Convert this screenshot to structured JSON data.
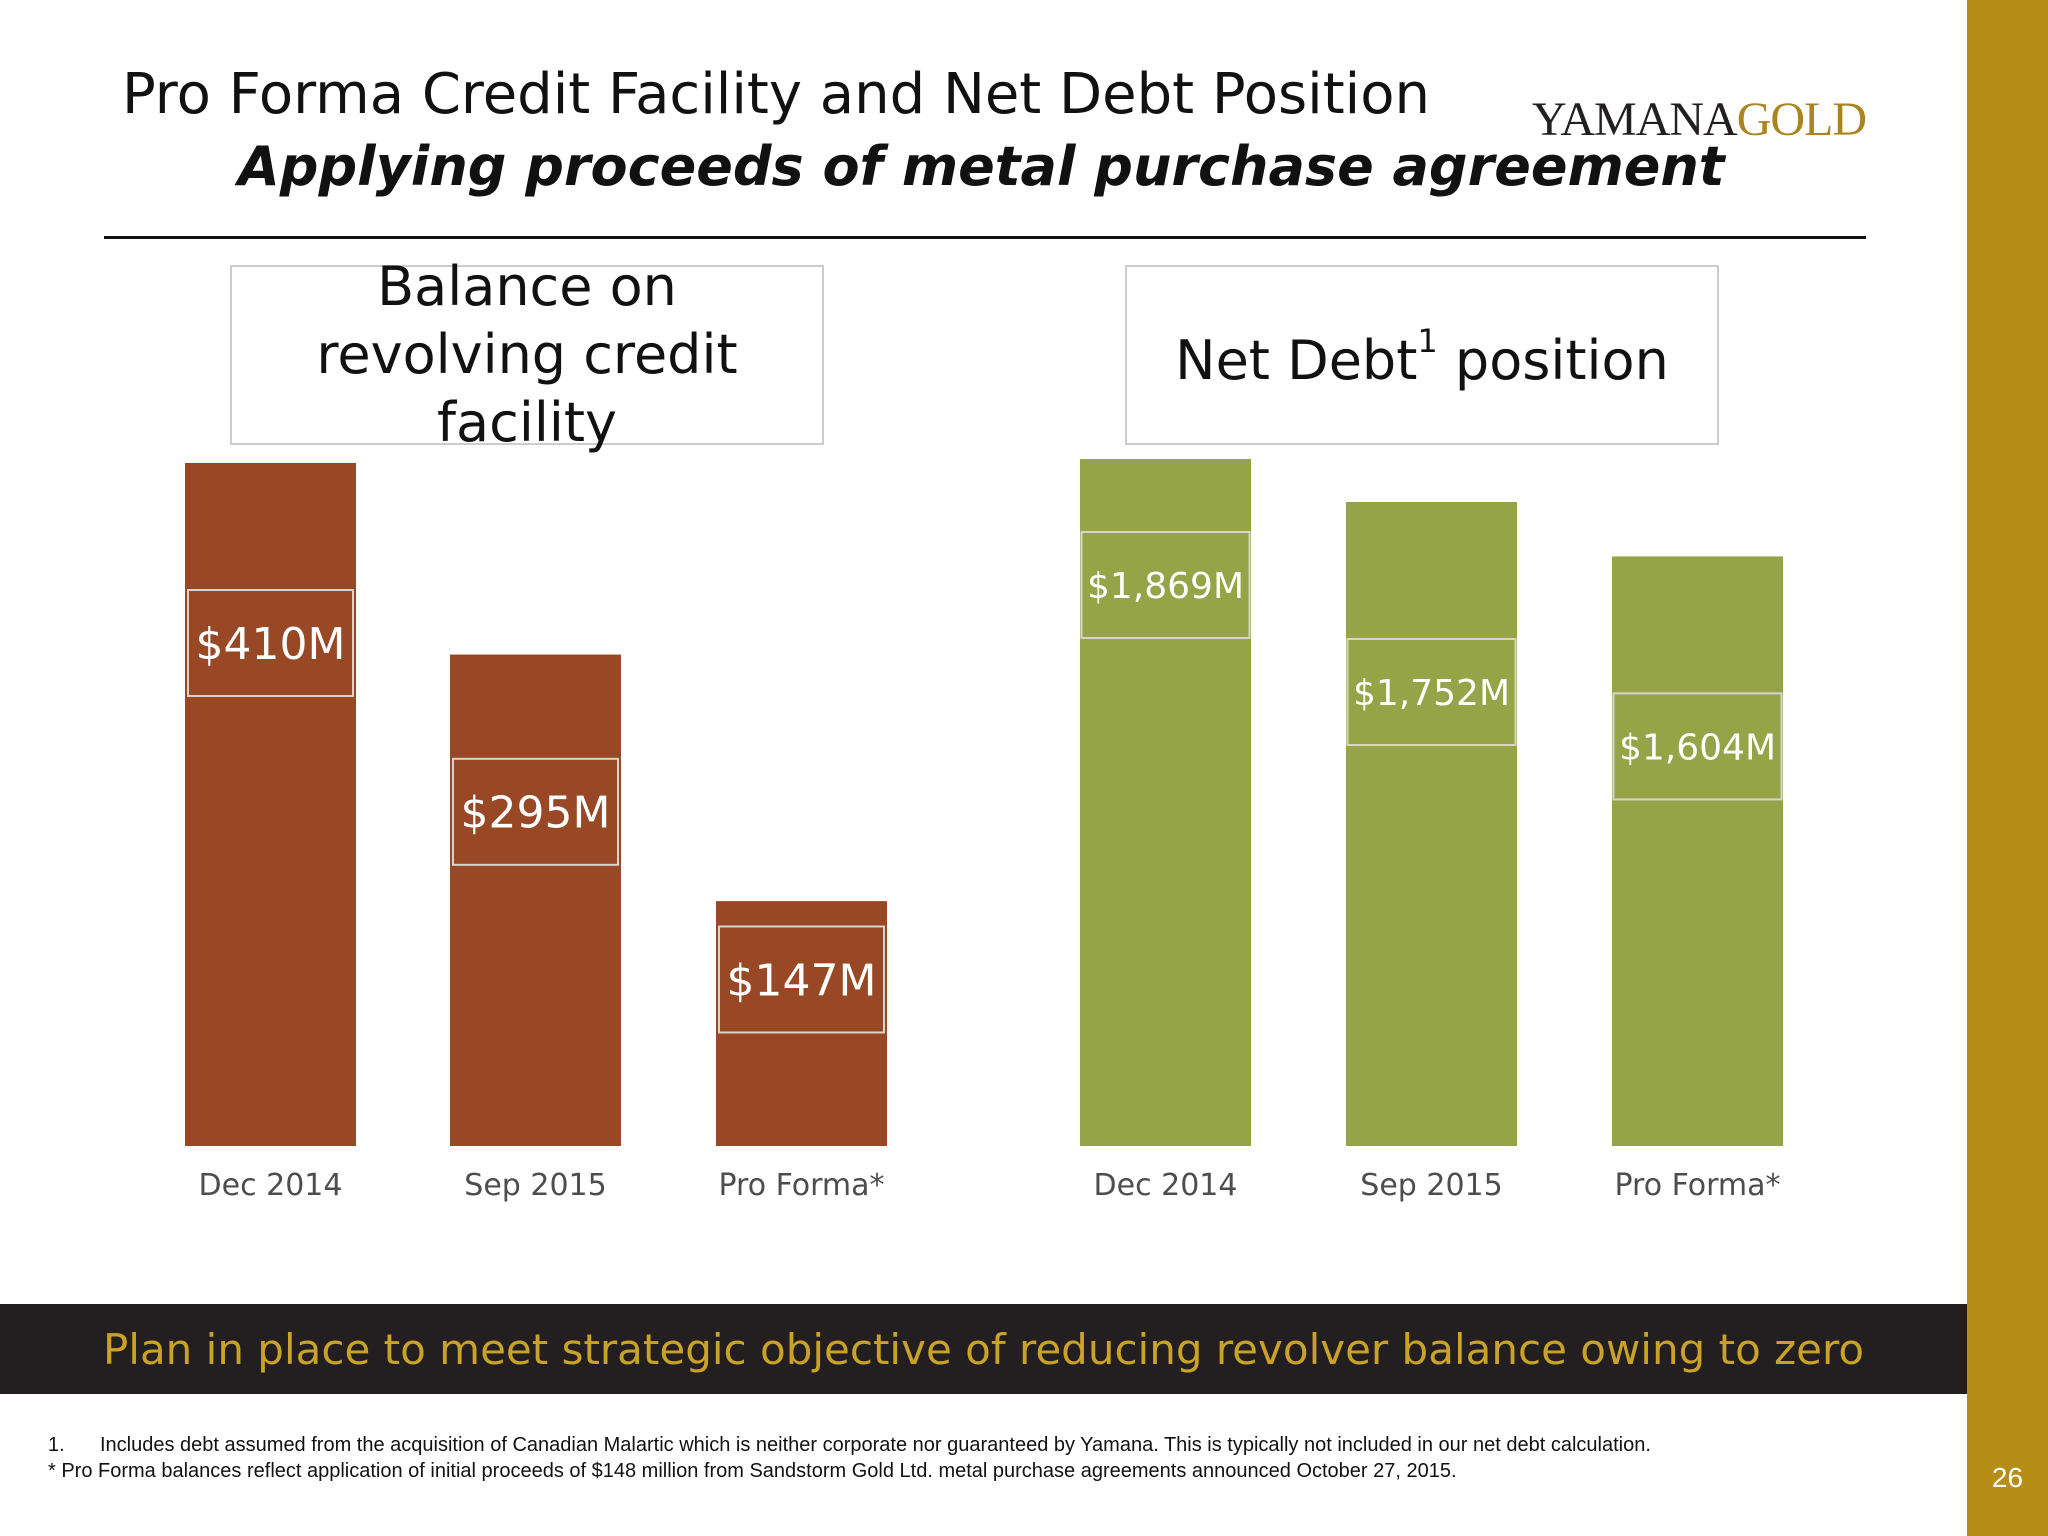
{
  "header": {
    "title": "Pro Forma Credit Facility and Net Debt Position",
    "subtitle": "Applying proceeds of metal purchase agreement",
    "logo_part1": "YAMANA",
    "logo_part2": "GOLD"
  },
  "chart_data": [
    {
      "type": "bar",
      "title": "Balance on revolving credit facility",
      "categories": [
        "Dec 2014",
        "Sep 2015",
        "Pro Forma*"
      ],
      "values": [
        410,
        295,
        147
      ],
      "labels": [
        "$410M",
        "$295M",
        "$147M"
      ],
      "unit": "$M",
      "color": "#984825"
    },
    {
      "type": "bar",
      "title": "Net Debt",
      "title_superscript": "1",
      "title_suffix": "position",
      "categories": [
        "Dec 2014",
        "Sep 2015",
        "Pro Forma*"
      ],
      "values": [
        1869,
        1752,
        1604
      ],
      "labels": [
        "$1,869M",
        "$1,752M",
        "$1,604M"
      ],
      "unit": "$M",
      "color": "#95a447"
    }
  ],
  "banner": {
    "text": "Plan in place to meet strategic objective of reducing revolver balance owing to zero"
  },
  "footnotes": {
    "fn1_marker": "1.",
    "fn1_text": "Includes debt assumed from the acquisition of Canadian Malartic which is neither corporate nor guaranteed by Yamana.  This is typically not included in our net debt calculation.",
    "fn2_text": "* Pro Forma balances reflect application of initial proceeds of $148 million from Sandstorm Gold Ltd. metal purchase agreements announced October 27, 2015."
  },
  "page_number": "26",
  "colors": {
    "accent_band": "#b68e17",
    "banner_bg": "#231f20",
    "banner_text": "#c9a227"
  }
}
